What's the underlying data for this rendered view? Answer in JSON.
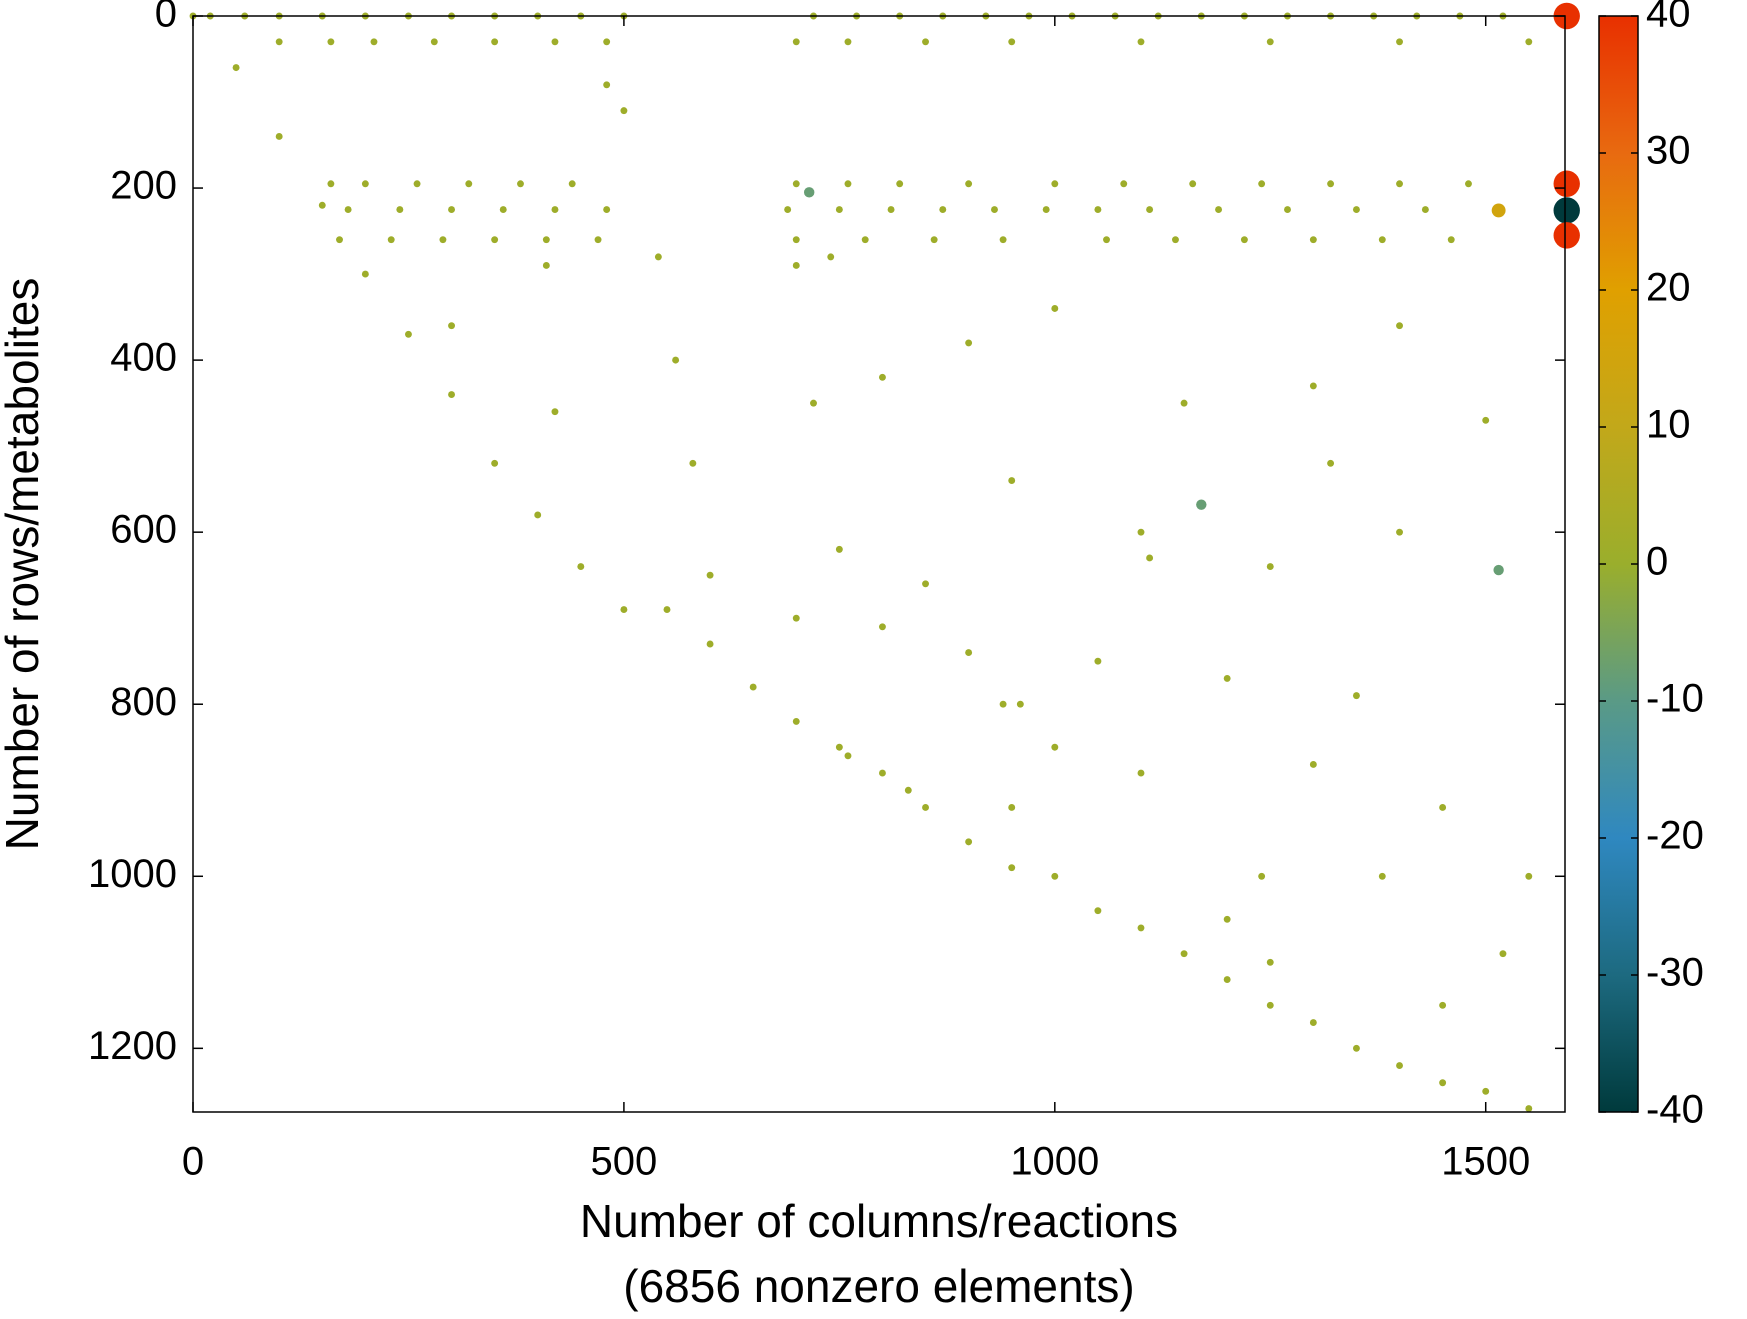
{
  "chart_data": {
    "type": "spy",
    "x_label": "Number of columns/reactions",
    "x_sublabel": "(6856 nonzero elements)",
    "y_label": "Number of rows/metabolites",
    "xlim": [
      0,
      1592
    ],
    "ylim": [
      1274,
      0
    ],
    "xticks": [
      0,
      500,
      1000,
      1500
    ],
    "yticks": [
      0,
      200,
      400,
      600,
      800,
      1000,
      1200
    ],
    "clim": [
      -40,
      40
    ],
    "cticks": [
      -40,
      -30,
      -20,
      -10,
      0,
      10,
      20,
      30,
      40
    ],
    "colormap": [
      "#003a3c",
      "#1d6a80",
      "#2f88c0",
      "#5a9a86",
      "#9aae2c",
      "#c2a81a",
      "#e0a000",
      "#e86a10",
      "#e83000"
    ],
    "points": [
      [
        0,
        0,
        1
      ],
      [
        50,
        60,
        1
      ],
      [
        100,
        140,
        1
      ],
      [
        150,
        220,
        1
      ],
      [
        200,
        300,
        1
      ],
      [
        250,
        370,
        1
      ],
      [
        300,
        440,
        1
      ],
      [
        350,
        520,
        1
      ],
      [
        400,
        580,
        1
      ],
      [
        450,
        640,
        1
      ],
      [
        500,
        690,
        1
      ],
      [
        550,
        690,
        1
      ],
      [
        600,
        730,
        1
      ],
      [
        650,
        780,
        1
      ],
      [
        700,
        820,
        1
      ],
      [
        750,
        850,
        1
      ],
      [
        800,
        880,
        1
      ],
      [
        850,
        920,
        1
      ],
      [
        900,
        960,
        1
      ],
      [
        950,
        990,
        1
      ],
      [
        1000,
        1000,
        1
      ],
      [
        1050,
        1040,
        1
      ],
      [
        1100,
        1060,
        1
      ],
      [
        1150,
        1090,
        1
      ],
      [
        1200,
        1120,
        1
      ],
      [
        1250,
        1150,
        1
      ],
      [
        1300,
        1170,
        1
      ],
      [
        1350,
        1200,
        1
      ],
      [
        1400,
        1220,
        1
      ],
      [
        1450,
        1240,
        1
      ],
      [
        1500,
        1250,
        1
      ],
      [
        1550,
        1270,
        1
      ],
      [
        20,
        0,
        1
      ],
      [
        60,
        0,
        1
      ],
      [
        100,
        0,
        1
      ],
      [
        150,
        0,
        1
      ],
      [
        200,
        0,
        1
      ],
      [
        250,
        0,
        1
      ],
      [
        300,
        0,
        1
      ],
      [
        350,
        0,
        1
      ],
      [
        400,
        0,
        1
      ],
      [
        450,
        0,
        1
      ],
      [
        500,
        0,
        1
      ],
      [
        720,
        0,
        1
      ],
      [
        770,
        0,
        1
      ],
      [
        820,
        0,
        1
      ],
      [
        870,
        0,
        1
      ],
      [
        920,
        0,
        1
      ],
      [
        970,
        0,
        1
      ],
      [
        1020,
        0,
        1
      ],
      [
        1070,
        0,
        1
      ],
      [
        1120,
        0,
        1
      ],
      [
        1170,
        0,
        1
      ],
      [
        1220,
        0,
        1
      ],
      [
        1270,
        0,
        1
      ],
      [
        1320,
        0,
        1
      ],
      [
        1370,
        0,
        1
      ],
      [
        1420,
        0,
        1
      ],
      [
        1470,
        0,
        1
      ],
      [
        1520,
        0,
        1
      ],
      [
        100,
        30,
        1
      ],
      [
        160,
        30,
        1
      ],
      [
        210,
        30,
        1
      ],
      [
        280,
        30,
        1
      ],
      [
        350,
        30,
        1
      ],
      [
        420,
        30,
        1
      ],
      [
        480,
        30,
        1
      ],
      [
        700,
        30,
        1
      ],
      [
        760,
        30,
        1
      ],
      [
        850,
        30,
        1
      ],
      [
        950,
        30,
        1
      ],
      [
        1100,
        30,
        1
      ],
      [
        1250,
        30,
        1
      ],
      [
        1400,
        30,
        1
      ],
      [
        1550,
        30,
        1
      ],
      [
        160,
        195,
        1
      ],
      [
        200,
        195,
        1
      ],
      [
        260,
        195,
        1
      ],
      [
        320,
        195,
        1
      ],
      [
        380,
        195,
        1
      ],
      [
        440,
        195,
        1
      ],
      [
        700,
        195,
        1
      ],
      [
        760,
        195,
        1
      ],
      [
        820,
        195,
        1
      ],
      [
        900,
        195,
        1
      ],
      [
        1000,
        195,
        1
      ],
      [
        1080,
        195,
        1
      ],
      [
        1160,
        195,
        1
      ],
      [
        1240,
        195,
        1
      ],
      [
        1320,
        195,
        1
      ],
      [
        1400,
        195,
        1
      ],
      [
        1480,
        195,
        1
      ],
      [
        180,
        225,
        1
      ],
      [
        240,
        225,
        1
      ],
      [
        300,
        225,
        1
      ],
      [
        360,
        225,
        1
      ],
      [
        420,
        225,
        1
      ],
      [
        480,
        225,
        1
      ],
      [
        690,
        225,
        1
      ],
      [
        750,
        225,
        1
      ],
      [
        810,
        225,
        1
      ],
      [
        870,
        225,
        1
      ],
      [
        930,
        225,
        1
      ],
      [
        990,
        225,
        1
      ],
      [
        1050,
        225,
        1
      ],
      [
        1110,
        225,
        1
      ],
      [
        1190,
        225,
        1
      ],
      [
        1270,
        225,
        1
      ],
      [
        1350,
        225,
        1
      ],
      [
        1430,
        225,
        1
      ],
      [
        170,
        260,
        1
      ],
      [
        230,
        260,
        1
      ],
      [
        290,
        260,
        1
      ],
      [
        350,
        260,
        1
      ],
      [
        410,
        260,
        1
      ],
      [
        470,
        260,
        1
      ],
      [
        700,
        260,
        1
      ],
      [
        780,
        260,
        1
      ],
      [
        860,
        260,
        1
      ],
      [
        940,
        260,
        1
      ],
      [
        1060,
        260,
        1
      ],
      [
        1140,
        260,
        1
      ],
      [
        1220,
        260,
        1
      ],
      [
        1300,
        260,
        1
      ],
      [
        1380,
        260,
        1
      ],
      [
        1460,
        260,
        1
      ],
      [
        480,
        80,
        1
      ],
      [
        500,
        110,
        1
      ],
      [
        540,
        280,
        1
      ],
      [
        560,
        400,
        1
      ],
      [
        580,
        520,
        1
      ],
      [
        600,
        650,
        1
      ],
      [
        410,
        290,
        1
      ],
      [
        700,
        290,
        1
      ],
      [
        740,
        280,
        1
      ],
      [
        300,
        360,
        1
      ],
      [
        420,
        460,
        1
      ],
      [
        720,
        450,
        1
      ],
      [
        800,
        420,
        1
      ],
      [
        900,
        380,
        1
      ],
      [
        1000,
        340,
        1
      ],
      [
        1150,
        450,
        1
      ],
      [
        1300,
        430,
        1
      ],
      [
        1400,
        360,
        1
      ],
      [
        1500,
        470,
        1
      ],
      [
        750,
        620,
        1
      ],
      [
        850,
        660,
        1
      ],
      [
        950,
        540,
        1
      ],
      [
        1100,
        600,
        1
      ],
      [
        1250,
        640,
        1
      ],
      [
        1400,
        600,
        1
      ],
      [
        700,
        700,
        1
      ],
      [
        800,
        710,
        1
      ],
      [
        900,
        740,
        1
      ],
      [
        1050,
        750,
        1
      ],
      [
        1200,
        770,
        1
      ],
      [
        1350,
        790,
        1
      ],
      [
        940,
        800,
        1
      ],
      [
        960,
        800,
        1
      ],
      [
        1000,
        850,
        1
      ],
      [
        1100,
        880,
        1
      ],
      [
        1300,
        870,
        1
      ],
      [
        1450,
        920,
        1
      ],
      [
        1520,
        1090,
        1
      ],
      [
        1550,
        1000,
        1
      ],
      [
        1200,
        1050,
        1
      ],
      [
        1250,
        1100,
        1
      ],
      [
        1380,
        1000,
        1
      ],
      [
        1450,
        1150,
        1
      ],
      [
        1110,
        630,
        1
      ],
      [
        1320,
        520,
        1
      ],
      [
        1240,
        1000,
        1
      ],
      [
        950,
        920,
        1
      ],
      [
        830,
        900,
        1
      ],
      [
        760,
        860,
        1
      ],
      [
        1594,
        0,
        40
      ],
      [
        1594,
        195,
        40
      ],
      [
        1594,
        226,
        -40
      ],
      [
        1594,
        255,
        40
      ],
      [
        1515,
        226,
        15
      ],
      [
        1170,
        568,
        -8
      ],
      [
        1515,
        644,
        -8
      ],
      [
        715,
        205,
        -8
      ]
    ]
  }
}
